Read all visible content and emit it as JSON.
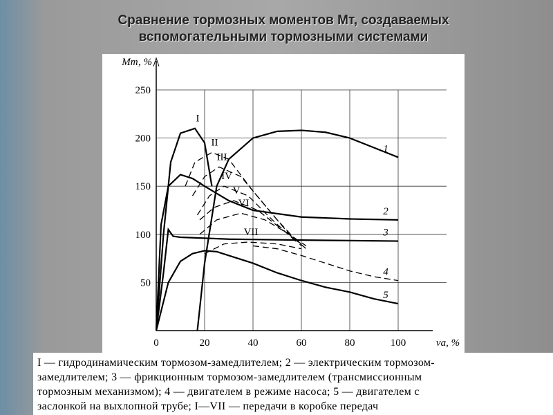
{
  "chart_data": {
    "type": "line",
    "title": "Сравнение тормозных моментов Мт, создаваемых вспомогательными тормозными системами",
    "y_label": "Mт, %",
    "x_label": "vа, %",
    "xlim": [
      0,
      100
    ],
    "xticks": [
      0,
      20,
      40,
      60,
      80,
      100
    ],
    "ylim": [
      0,
      250
    ],
    "yticks": [
      50,
      100,
      150,
      200,
      250
    ],
    "grid": true,
    "series": [
      {
        "name": "1",
        "color": "#000000",
        "dashed": false,
        "label_position": "end",
        "x": [
          17,
          20,
          25,
          30,
          40,
          50,
          60,
          70,
          80,
          90,
          100
        ],
        "values": [
          0,
          70,
          150,
          178,
          200,
          207,
          208,
          206,
          200,
          190,
          180
        ]
      },
      {
        "name": "2",
        "color": "#000000",
        "dashed": false,
        "label_position": "end",
        "x": [
          0,
          2,
          5,
          10,
          15,
          20,
          30,
          40,
          60,
          80,
          100
        ],
        "values": [
          0,
          110,
          150,
          162,
          158,
          150,
          135,
          125,
          118,
          116,
          115
        ]
      },
      {
        "name": "3",
        "color": "#000000",
        "dashed": false,
        "label_position": "end",
        "x": [
          0,
          3,
          5,
          7,
          10,
          30,
          60,
          100
        ],
        "values": [
          0,
          60,
          105,
          98,
          97,
          95,
          94,
          93
        ]
      },
      {
        "name": "4",
        "color": "#000000",
        "dashed": true,
        "label_position": "end",
        "x": [
          40,
          50,
          60,
          70,
          80,
          90,
          100
        ],
        "values": [
          88,
          85,
          78,
          70,
          62,
          56,
          52
        ]
      },
      {
        "name": "5",
        "color": "#000000",
        "dashed": false,
        "label_position": "end",
        "x": [
          0,
          5,
          10,
          15,
          20,
          25,
          30,
          40,
          50,
          60,
          70,
          80,
          90,
          100
        ],
        "values": [
          0,
          50,
          72,
          80,
          83,
          82,
          78,
          70,
          60,
          52,
          45,
          40,
          33,
          28
        ]
      },
      {
        "name": "I",
        "color": "#000000",
        "dashed": false,
        "label_position": "peak",
        "x": [
          0,
          3,
          6,
          10,
          16,
          20,
          23
        ],
        "values": [
          0,
          100,
          175,
          205,
          210,
          195,
          150
        ]
      },
      {
        "name": "II",
        "color": "#000000",
        "dashed": true,
        "label_position": "peak",
        "x": [
          12,
          16,
          23,
          30,
          40,
          50,
          60
        ],
        "values": [
          150,
          175,
          185,
          178,
          145,
          115,
          88
        ]
      },
      {
        "name": "III",
        "color": "#000000",
        "dashed": true,
        "label_position": "peak",
        "x": [
          15,
          20,
          26,
          35,
          45,
          55,
          62
        ],
        "values": [
          140,
          160,
          170,
          160,
          130,
          100,
          85
        ]
      },
      {
        "name": "IV",
        "color": "#000000",
        "dashed": true,
        "label_position": "peak",
        "x": [
          17,
          22,
          28,
          38,
          48,
          58
        ],
        "values": [
          120,
          140,
          150,
          140,
          115,
          92
        ]
      },
      {
        "name": "V",
        "color": "#000000",
        "dashed": true,
        "label_position": "peak",
        "x": [
          18,
          24,
          32,
          42,
          52,
          60
        ],
        "values": [
          115,
          128,
          135,
          125,
          105,
          90
        ]
      },
      {
        "name": "VI",
        "color": "#000000",
        "dashed": true,
        "label_position": "peak",
        "x": [
          18,
          25,
          35,
          45,
          55,
          62
        ],
        "values": [
          100,
          115,
          122,
          115,
          100,
          88
        ]
      },
      {
        "name": "VII",
        "color": "#000000",
        "dashed": true,
        "label_position": "peak",
        "x": [
          20,
          28,
          38,
          50,
          60
        ],
        "values": [
          80,
          90,
          92,
          90,
          85
        ]
      }
    ],
    "caption": [
      "I — гидродинамическим тормозом-замедлителем; 2 — электрическим тормозом-",
      "замедлителем; 3 — фрикционным тормозом-замедлителем (трансмиссионным",
      "тормозным механизмом); 4 — двигателем в режиме насоса; 5 — двигателем с",
      "заслонкой на выхлопной трубе; I—VII — передачи в коробке передач"
    ]
  }
}
